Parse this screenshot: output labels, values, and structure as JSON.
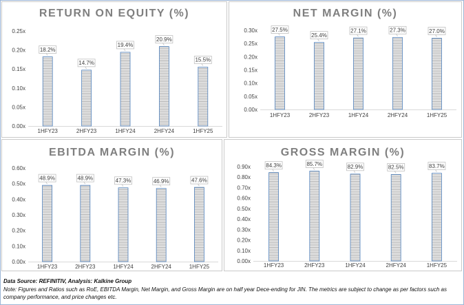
{
  "chart_data": [
    {
      "type": "bar",
      "title": "RETURN ON EQUITY (%)",
      "categories": [
        "1HFY23",
        "2HFY23",
        "1HFY24",
        "2HFY24",
        "1HFY25"
      ],
      "values": [
        0.182,
        0.147,
        0.194,
        0.209,
        0.155
      ],
      "data_labels": [
        "18.2%",
        "14.7%",
        "19.4%",
        "20.9%",
        "15.5%"
      ],
      "ylim": [
        0,
        0.25
      ],
      "yticks": [
        "0.00x",
        "0.05x",
        "0.10x",
        "0.15x",
        "0.20x",
        "0.25x"
      ],
      "grid": false
    },
    {
      "type": "bar",
      "title": "NET MARGIN (%)",
      "categories": [
        "1HFY23",
        "2HFY23",
        "1HFY24",
        "2HFY24",
        "1HFY25"
      ],
      "values": [
        0.275,
        0.254,
        0.271,
        0.273,
        0.27
      ],
      "data_labels": [
        "27.5%",
        "25.4%",
        "27.1%",
        "27.3%",
        "27.0%"
      ],
      "ylim": [
        0,
        0.3
      ],
      "yticks": [
        "0.00x",
        "0.05x",
        "0.10x",
        "0.15x",
        "0.20x",
        "0.25x",
        "0.30x"
      ],
      "grid": false
    },
    {
      "type": "bar",
      "title": "EBITDA MARGIN (%)",
      "categories": [
        "1HFY23",
        "2HFY23",
        "1HFY24",
        "2HFY24",
        "1HFY25"
      ],
      "values": [
        0.489,
        0.489,
        0.473,
        0.469,
        0.476
      ],
      "data_labels": [
        "48.9%",
        "48.9%",
        "47.3%",
        "46.9%",
        "47.6%"
      ],
      "ylim": [
        0,
        0.6
      ],
      "yticks": [
        "0.00x",
        "0.10x",
        "0.20x",
        "0.30x",
        "0.40x",
        "0.50x",
        "0.60x"
      ],
      "grid": false
    },
    {
      "type": "bar",
      "title": "GROSS MARGIN (%)",
      "categories": [
        "1HFY23",
        "2HFY23",
        "1HFY24",
        "2HFY24",
        "1HFY25"
      ],
      "values": [
        0.843,
        0.857,
        0.829,
        0.825,
        0.837
      ],
      "data_labels": [
        "84.3%",
        "85.7%",
        "82.9%",
        "82.5%",
        "83.7%"
      ],
      "ylim": [
        0,
        0.9
      ],
      "yticks": [
        "0.00x",
        "0.10x",
        "0.20x",
        "0.30x",
        "0.40x",
        "0.50x",
        "0.60x",
        "0.70x",
        "0.80x",
        "0.90x"
      ],
      "grid": false
    }
  ],
  "footer": {
    "source": "Data Source: REFINITIV, Analysis: Kalkine Group",
    "note": "Note: Figures and Ratios such as RoE, EBITDA Margin, Net Margin, and Gross Margin are on half year Dece-ending for JIN. The metrics are subject to change as per factors such as company performance, and price changes etc."
  },
  "colors": {
    "bar_stripe": "#a6a6a6",
    "bar_fill": "#f2f2f2",
    "bar_outline": "#4f81bd",
    "title": "#7f7f7f",
    "label_border": "#bfbfbf",
    "frame": "#9bb5d6"
  }
}
